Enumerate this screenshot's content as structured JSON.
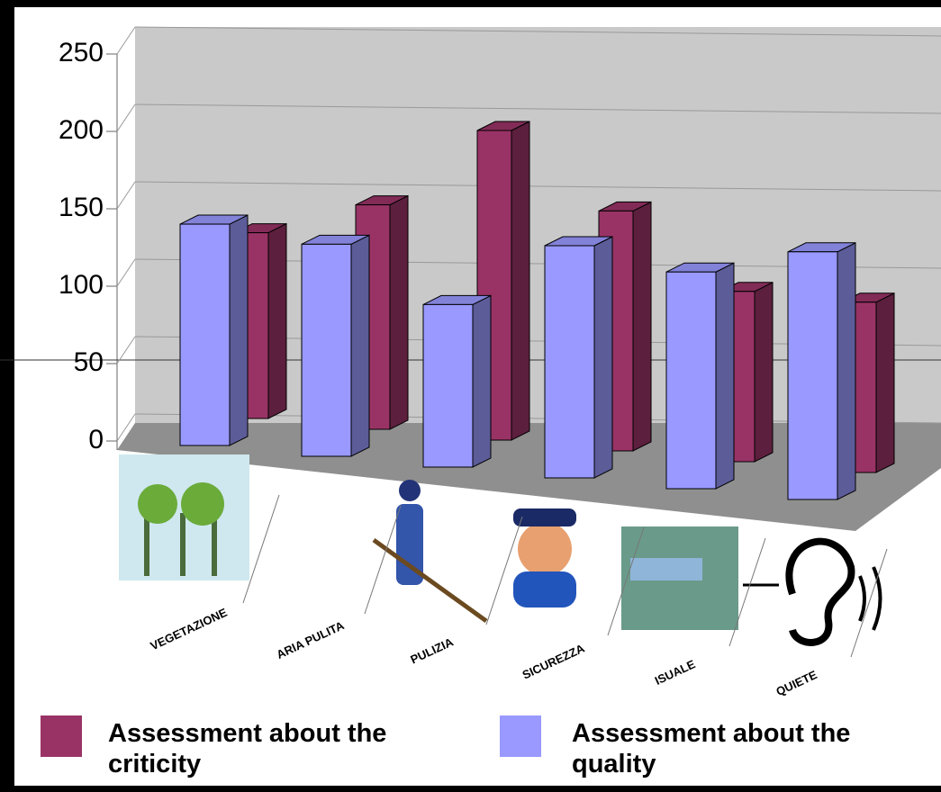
{
  "chart_data": {
    "type": "bar3d",
    "categories": [
      "VEGETAZIONE",
      "ARIA PULITA",
      "PULIZIA",
      "SICUREZZA",
      "ISUALE",
      "QUIETE"
    ],
    "series": [
      {
        "name": "Assessment about the criticity",
        "color": "#993366",
        "values": [
          120,
          145,
          200,
          155,
          110,
          110
        ]
      },
      {
        "name": "Assessment about the quality",
        "color": "#9999ff",
        "values": [
          143,
          137,
          105,
          150,
          140,
          160
        ]
      }
    ],
    "ylim": [
      0,
      250
    ],
    "yticks": [
      0,
      50,
      100,
      150,
      200,
      250
    ],
    "grid": true
  }
}
